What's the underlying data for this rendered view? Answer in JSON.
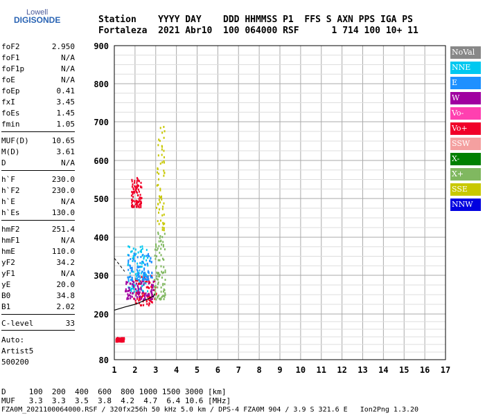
{
  "logo": {
    "top": "Lowell",
    "bottom": "DIGISONDE"
  },
  "header": {
    "row1": "Station    YYYY DAY    DDD HHMMSS P1  FFS S AXN PPS IGA PS",
    "row2": "Fortaleza  2021 Abr10  100 064000 RSF      1 714 100 10+ 11"
  },
  "params": [
    {
      "k": "foF2",
      "v": "2.950"
    },
    {
      "k": "foF1",
      "v": "N/A"
    },
    {
      "k": "foF1p",
      "v": "N/A"
    },
    {
      "k": "foE",
      "v": "N/A"
    },
    {
      "k": "foEp",
      "v": "0.41"
    },
    {
      "k": "fxI",
      "v": "3.45"
    },
    {
      "k": "foEs",
      "v": "1.45"
    },
    {
      "k": "fmin",
      "v": "1.05"
    },
    {
      "k": "MUF(D)",
      "v": "10.65"
    },
    {
      "k": "M(D)",
      "v": "3.61"
    },
    {
      "k": "D",
      "v": "N/A"
    },
    {
      "k": "h`F",
      "v": "230.0"
    },
    {
      "k": "h`F2",
      "v": "230.0"
    },
    {
      "k": "h`E",
      "v": "N/A"
    },
    {
      "k": "h`Es",
      "v": "130.0"
    },
    {
      "k": "hmF2",
      "v": "251.4"
    },
    {
      "k": "hmF1",
      "v": "N/A"
    },
    {
      "k": "hmE",
      "v": "110.0"
    },
    {
      "k": "yF2",
      "v": "34.2"
    },
    {
      "k": "yF1",
      "v": "N/A"
    },
    {
      "k": "yE",
      "v": "20.0"
    },
    {
      "k": "B0",
      "v": "34.8"
    },
    {
      "k": "B1",
      "v": "2.02"
    },
    {
      "k": "C-level",
      "v": "33"
    }
  ],
  "footer_left": [
    "Auto:",
    "Artist5",
    "500200"
  ],
  "legend": [
    {
      "label": "NoVal",
      "color": "#888888"
    },
    {
      "label": "NNE",
      "color": "#00c8f0"
    },
    {
      "label": "E",
      "color": "#1e90ff"
    },
    {
      "label": "W",
      "color": "#a000a0"
    },
    {
      "label": "Vo-",
      "color": "#ff40b0"
    },
    {
      "label": "Vo+",
      "color": "#f00028"
    },
    {
      "label": "SSW",
      "color": "#f4a0a0"
    },
    {
      "label": "X-",
      "color": "#008000"
    },
    {
      "label": "X+",
      "color": "#80b860"
    },
    {
      "label": "SSE",
      "color": "#c8c800"
    },
    {
      "label": "NNW",
      "color": "#0000e0"
    }
  ],
  "bottom": {
    "row1": "D     100  200  400  600  800 1000 1500 3000 [km]",
    "row2": "MUF   3.3  3.3  3.5  3.8  4.2  4.7  6.4 10.6 [MHz]",
    "row3": "FZA0M_2021100064000.RSF / 320fx256h 50 kHz 5.0 km / DPS-4 FZA0M 904 / 3.9 S 321.6 E   Ion2Png 1.3.20"
  },
  "chart_data": {
    "type": "scatter",
    "x_ticks": [
      "1",
      "2",
      "3",
      "4",
      "5",
      "6",
      "7",
      "8",
      "9",
      "10",
      "11",
      "12",
      "13",
      "14",
      "15",
      "16",
      "17"
    ],
    "y_ticks": [
      "80",
      "200",
      "300",
      "400",
      "500",
      "600",
      "700",
      "800",
      "900"
    ],
    "xlim": [
      1,
      17
    ],
    "y_scale": "nonlinear",
    "grid": true,
    "legend_position": "right",
    "profile": [
      [
        1.0,
        210
      ],
      [
        1.5,
        218
      ],
      [
        2.0,
        225
      ],
      [
        2.5,
        236
      ],
      [
        2.9,
        246
      ],
      [
        2.95,
        251.4
      ]
    ],
    "clusters": [
      {
        "series": "Vo+",
        "color": "#f00028",
        "f": [
          1.9,
          3.0
        ],
        "h": [
          225,
          300
        ]
      },
      {
        "series": "NNE",
        "color": "#00c8f0",
        "f": [
          1.6,
          2.6
        ],
        "h": [
          260,
          380
        ]
      },
      {
        "series": "X+",
        "color": "#80b860",
        "f": [
          2.9,
          3.45
        ],
        "h": [
          240,
          420
        ]
      },
      {
        "series": "SSE",
        "color": "#c8c800",
        "f": [
          3.0,
          3.4
        ],
        "h": [
          420,
          690
        ]
      },
      {
        "series": "Vo+",
        "color": "#f00028",
        "f": [
          1.8,
          2.3
        ],
        "h": [
          480,
          560
        ]
      },
      {
        "series": "Vo+",
        "color": "#f00028",
        "f": [
          1.05,
          1.45
        ],
        "h": [
          130,
          140
        ]
      },
      {
        "series": "W",
        "color": "#a000a0",
        "f": [
          1.5,
          2.9
        ],
        "h": [
          240,
          290
        ]
      },
      {
        "series": "E",
        "color": "#1e90ff",
        "f": [
          1.6,
          2.8
        ],
        "h": [
          290,
          360
        ]
      }
    ]
  }
}
